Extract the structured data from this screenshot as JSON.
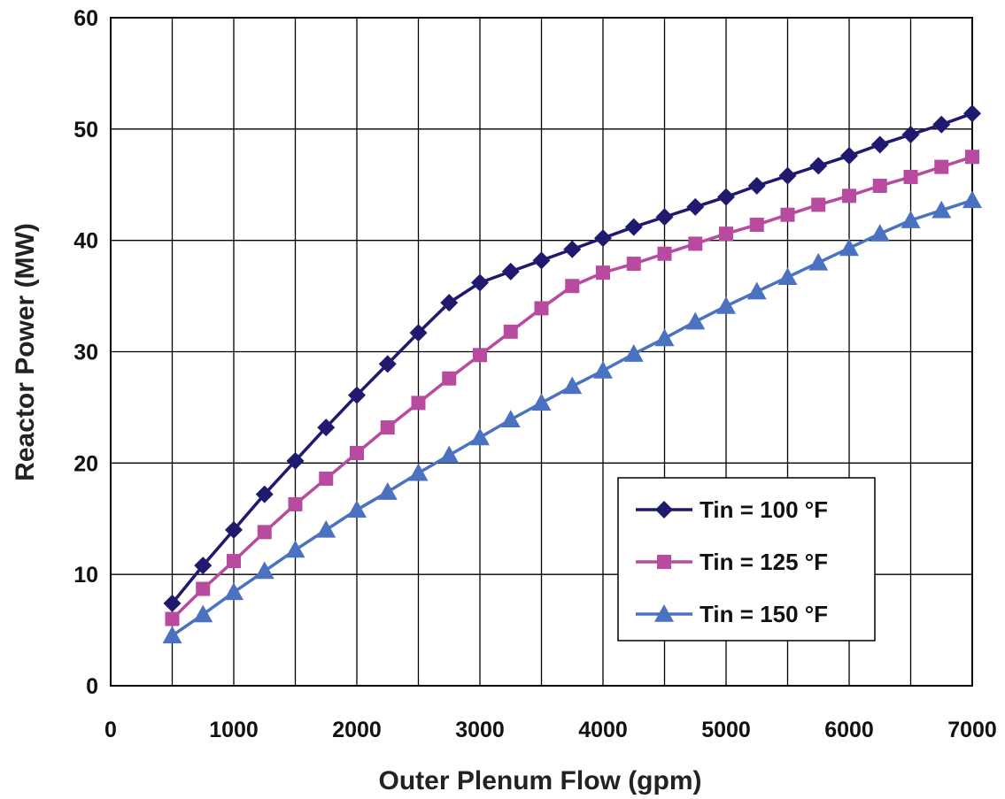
{
  "chart_data": {
    "type": "line",
    "title": "",
    "xlabel": "Outer Plenum Flow (gpm)",
    "ylabel": "Reactor Power (MW)",
    "xlim": [
      0,
      7000
    ],
    "ylim": [
      0,
      60
    ],
    "xticks": [
      "0",
      "1000",
      "2000",
      "3000",
      "4000",
      "5000",
      "6000",
      "7000"
    ],
    "yticks": [
      "0",
      "10",
      "20",
      "30",
      "40",
      "50",
      "60"
    ],
    "grid": true,
    "legend_position": "bottom-right",
    "x": [
      500,
      750,
      1000,
      1250,
      1500,
      1750,
      2000,
      2250,
      2500,
      2750,
      3000,
      3250,
      3500,
      3750,
      4000,
      4250,
      4500,
      4750,
      5000,
      5250,
      5500,
      5750,
      6000,
      6250,
      6500,
      6750,
      7000
    ],
    "series": [
      {
        "name": "Tin = 100 °F",
        "marker": "diamond",
        "color": "#1f1a6e",
        "values": [
          7.4,
          10.8,
          14.0,
          17.2,
          20.2,
          23.2,
          26.1,
          28.9,
          31.7,
          34.4,
          36.2,
          37.2,
          38.2,
          39.2,
          40.2,
          41.2,
          42.1,
          43.0,
          43.9,
          44.9,
          45.8,
          46.7,
          47.6,
          48.6,
          49.5,
          50.4,
          51.4
        ]
      },
      {
        "name": "Tin = 125 °F",
        "marker": "square",
        "color": "#b84aa0",
        "values": [
          6.0,
          8.7,
          11.2,
          13.8,
          16.3,
          18.6,
          20.9,
          23.2,
          25.4,
          27.6,
          29.7,
          31.8,
          33.9,
          35.9,
          37.1,
          37.9,
          38.8,
          39.7,
          40.6,
          41.4,
          42.3,
          43.2,
          44.0,
          44.9,
          45.7,
          46.6,
          47.5
        ]
      },
      {
        "name": "Tin = 150 °F",
        "marker": "triangle",
        "color": "#4a72c0",
        "values": [
          4.5,
          6.4,
          8.4,
          10.3,
          12.2,
          14.0,
          15.8,
          17.4,
          19.1,
          20.7,
          22.3,
          23.9,
          25.4,
          26.9,
          28.3,
          29.8,
          31.2,
          32.7,
          34.1,
          35.4,
          36.7,
          38.0,
          39.3,
          40.6,
          41.8,
          42.7,
          43.6
        ]
      }
    ]
  }
}
